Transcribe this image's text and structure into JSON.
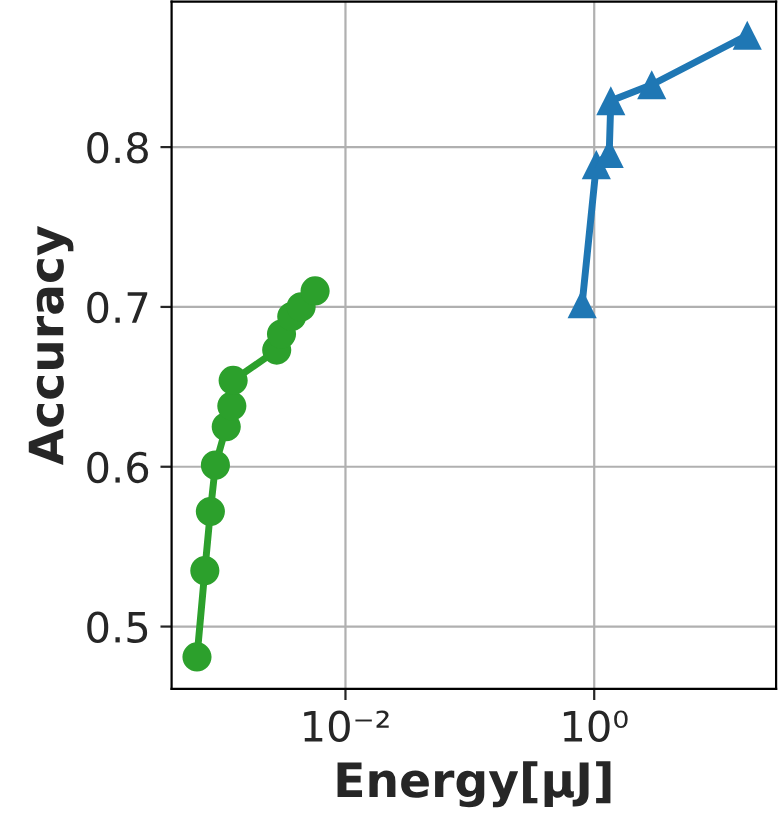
{
  "chart_data": {
    "type": "line",
    "xlabel": "Energy[μJ]",
    "ylabel": "Accuracy",
    "log": "x",
    "xlim": [
      0.0004,
      29
    ],
    "xticks": [
      {
        "value": 0.01,
        "label": "10⁻²"
      },
      {
        "value": 1,
        "label": "10⁰"
      }
    ],
    "ylim": [
      0.461,
      0.891
    ],
    "yticks": [
      0.5,
      0.6,
      0.7,
      0.8
    ],
    "grid": true,
    "line_style": "solid",
    "series": [
      {
        "color": "#1f77b4",
        "marker": "triangle",
        "x": [
          0.8,
          1.04,
          1.32,
          1.36,
          2.9,
          17
        ],
        "values": [
          0.702,
          0.789,
          0.796,
          0.829,
          0.839,
          0.87
        ]
      },
      {
        "color": "#2ca02c",
        "marker": "circle",
        "x": [
          0.00064,
          0.00074,
          0.00082,
          0.0009,
          0.0011,
          0.00122,
          0.00125,
          0.0028,
          0.00306,
          0.0037,
          0.0044,
          0.0057
        ],
        "values": [
          0.481,
          0.535,
          0.572,
          0.601,
          0.625,
          0.638,
          0.654,
          0.673,
          0.683,
          0.694,
          0.7,
          0.71
        ]
      }
    ]
  }
}
